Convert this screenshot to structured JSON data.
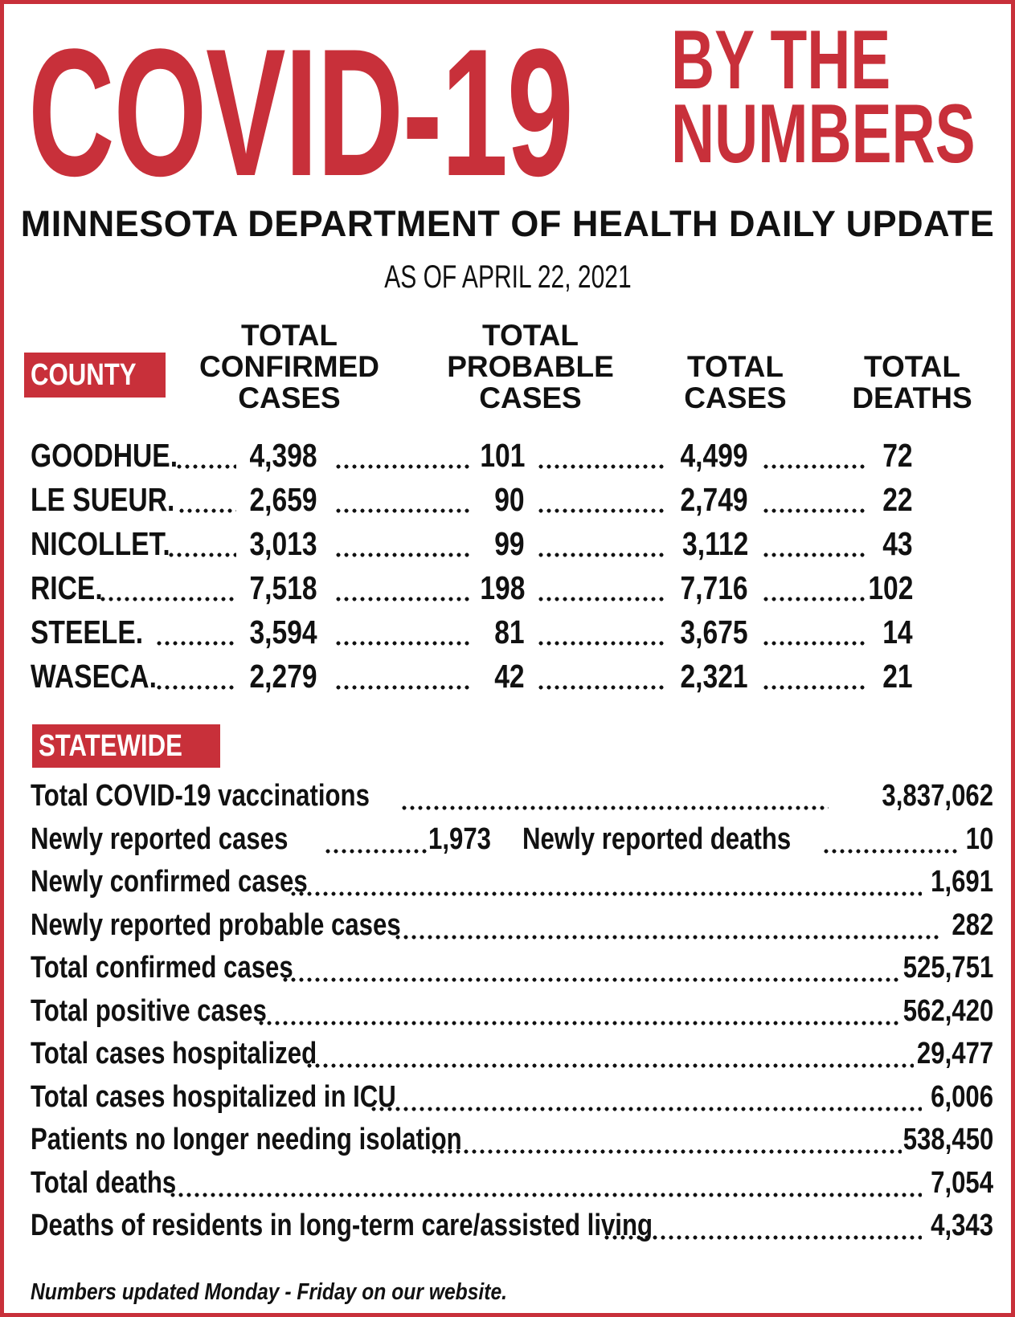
{
  "headline": {
    "main": "COVID-19",
    "tag_line1": "BY THE",
    "tag_line2": "NUMBERS"
  },
  "subhead": "MINNESOTA DEPARTMENT OF HEALTH DAILY UPDATE",
  "as_of": "AS OF APRIL 22, 2021",
  "county_section": {
    "label": "COUNTY",
    "columns": [
      "TOTAL\nCONFIRMED\nCASES",
      "TOTAL\nPROBABLE\nCASES",
      "TOTAL\nCASES",
      "TOTAL\nDEATHS"
    ],
    "rows": [
      {
        "county": "GOODHUE.",
        "confirmed": "4,398",
        "probable": "101",
        "total": "4,499",
        "deaths": "72"
      },
      {
        "county": "LE SUEUR.",
        "confirmed": "2,659",
        "probable": "90",
        "total": "2,749",
        "deaths": "22"
      },
      {
        "county": "NICOLLET.",
        "confirmed": "3,013",
        "probable": "99",
        "total": "3,112",
        "deaths": "43"
      },
      {
        "county": "RICE.",
        "confirmed": "7,518",
        "probable": "198",
        "total": "7,716",
        "deaths": "102"
      },
      {
        "county": "STEELE.",
        "confirmed": "3,594",
        "probable": "81",
        "total": "3,675",
        "deaths": "14"
      },
      {
        "county": "WASECA.",
        "confirmed": "2,279",
        "probable": "42",
        "total": "2,321",
        "deaths": "21"
      }
    ]
  },
  "statewide": {
    "label": "STATEWIDE",
    "vaccinations": {
      "label": "Total COVID-19 vaccinations",
      "value": "3,837,062"
    },
    "newly_reported": {
      "cases_label": "Newly reported cases",
      "cases_value": "1,973",
      "deaths_label": "Newly reported deaths",
      "deaths_value": "10"
    },
    "items": [
      {
        "label": "Newly confirmed cases",
        "value": "1,691"
      },
      {
        "label": "Newly reported probable cases",
        "value": "282"
      },
      {
        "label": "Total confirmed cases",
        "value": "525,751"
      },
      {
        "label": "Total positive cases",
        "value": "562,420"
      },
      {
        "label": "Total cases hospitalized",
        "value": "29,477"
      },
      {
        "label": "Total cases hospitalized in ICU",
        "value": "6,006"
      },
      {
        "label": "Patients no longer needing isolation",
        "value": "538,450"
      },
      {
        "label": "Total deaths",
        "value": "7,054"
      },
      {
        "label": "Deaths of residents in long-term care/assisted living",
        "value": "4,343"
      }
    ]
  },
  "footnote": "Numbers updated Monday - Friday on our website.",
  "colors": {
    "accent": "#c8303a",
    "text": "#111111",
    "background": "#ffffff"
  }
}
